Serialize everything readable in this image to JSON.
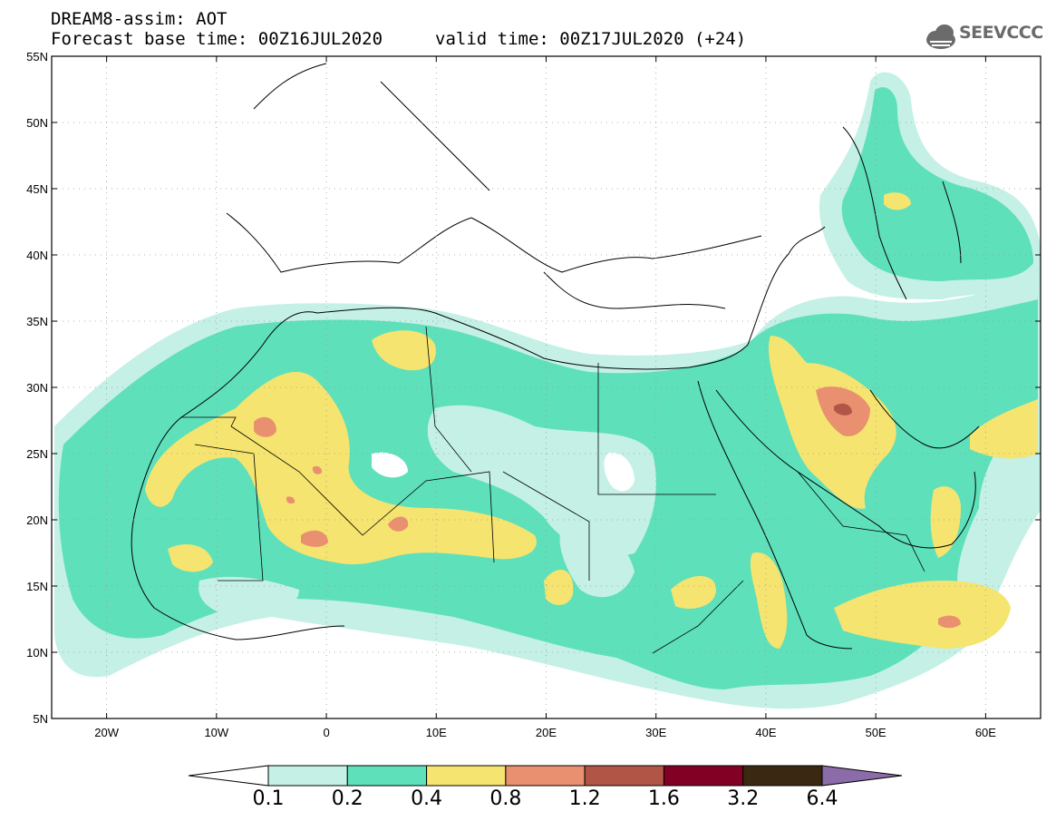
{
  "header": {
    "line1": "DREAM8-assim: AOT",
    "line2": "Forecast base time: 00Z16JUL2020",
    "valid": "valid time: 00Z17JUL2020 (+24)"
  },
  "logo": {
    "text": "SEEVCCC",
    "icon": "cloud-icon"
  },
  "axes": {
    "lat_labels": [
      "55N",
      "50N",
      "45N",
      "40N",
      "35N",
      "30N",
      "25N",
      "20N",
      "15N",
      "10N",
      "5N"
    ],
    "lat_values": [
      55,
      50,
      45,
      40,
      35,
      30,
      25,
      20,
      15,
      10,
      5
    ],
    "lon_labels": [
      "20W",
      "10W",
      "0",
      "10E",
      "20E",
      "30E",
      "40E",
      "50E",
      "60E"
    ],
    "lon_values": [
      -20,
      -10,
      0,
      10,
      20,
      30,
      40,
      50,
      60
    ],
    "lon_range": [
      -25,
      65
    ],
    "lat_range": [
      5,
      55
    ]
  },
  "colorbar": {
    "colors": [
      "#ffffff",
      "#c4f0e6",
      "#5ee0bb",
      "#f5e46f",
      "#e99070",
      "#b15646",
      "#820024",
      "#3b2812",
      "#8b6ba8"
    ],
    "labels": [
      "0.1",
      "0.2",
      "0.4",
      "0.8",
      "1.2",
      "1.6",
      "3.2",
      "6.4"
    ]
  },
  "legend_colors": {
    "very_low": "#c4f0e6",
    "low": "#5ee0bb",
    "moderate": "#f5e46f",
    "high": "#e99070",
    "very_high": "#b15646"
  }
}
